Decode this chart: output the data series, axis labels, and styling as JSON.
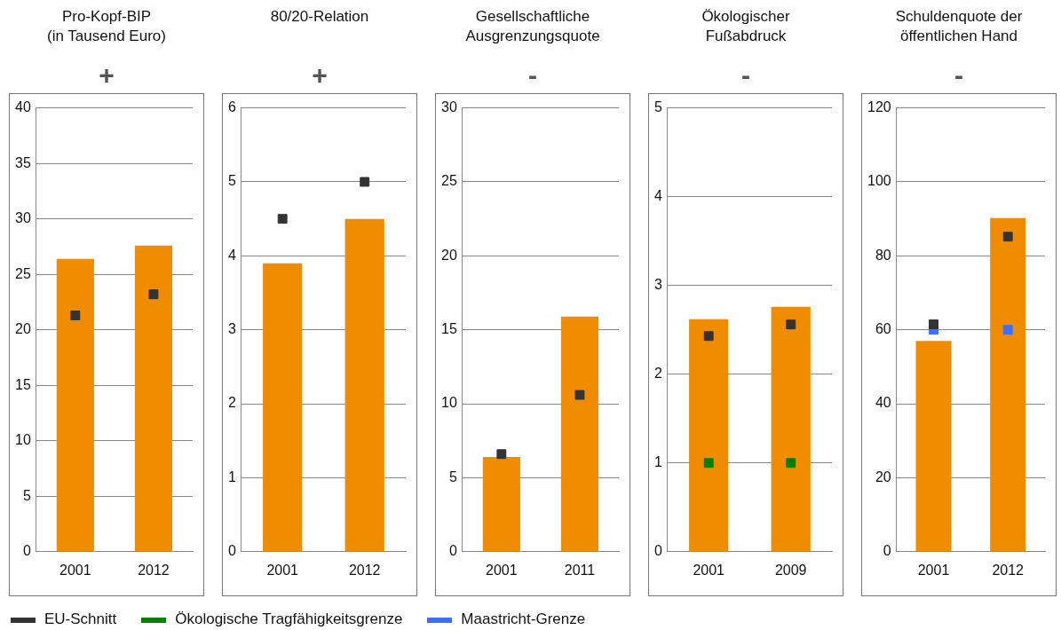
{
  "chart_data": [
    {
      "type": "bar",
      "title": "Pro-Kopf-BIP\n(in Tausend Euro)",
      "annotations": [
        "+"
      ],
      "categories": [
        "2001",
        "2012"
      ],
      "values": [
        26.4,
        27.6
      ],
      "color": "#f08c00",
      "ylim": [
        0,
        40
      ],
      "yticks": [
        0,
        5,
        10,
        15,
        20,
        25,
        30,
        35,
        40
      ],
      "grid": "y",
      "legend": "bottom",
      "marker": "square",
      "series": [
        {
          "name": "EU-Schnitt",
          "type": "scatter",
          "color": "#333333",
          "values": [
            21.3,
            23.2
          ]
        }
      ]
    },
    {
      "type": "bar",
      "title": "80/20-Relation",
      "annotations": [
        "+"
      ],
      "categories": [
        "2001",
        "2012"
      ],
      "values": [
        3.9,
        4.5
      ],
      "color": "#f08c00",
      "ylim": [
        0,
        6
      ],
      "yticks": [
        0,
        1,
        2,
        3,
        4,
        5,
        6
      ],
      "grid": "y",
      "marker": "square",
      "series": [
        {
          "type": "scatter",
          "color": "#333333",
          "values": [
            4.5,
            5.0
          ]
        }
      ]
    },
    {
      "type": "bar",
      "title": "Gesellschaftliche\nAusgrenzungsquote",
      "annotations": [
        "-"
      ],
      "categories": [
        "2001",
        "2011"
      ],
      "values": [
        6.4,
        15.9
      ],
      "color": "#f08c00",
      "ylim": [
        0,
        30
      ],
      "yticks": [
        0,
        5,
        10,
        15,
        20,
        25,
        30
      ],
      "grid": "y",
      "marker": "square",
      "series": [
        {
          "type": "scatter",
          "color": "#333333",
          "values": [
            6.6,
            10.6
          ]
        }
      ]
    },
    {
      "type": "bar",
      "title": "Ökologischer\nFußabdruck",
      "annotations": [
        "-"
      ],
      "categories": [
        "2001",
        "2009"
      ],
      "values": [
        2.62,
        2.76
      ],
      "color": "#f08c00",
      "ylim": [
        0,
        5
      ],
      "yticks": [
        0,
        1,
        2,
        3,
        4,
        5
      ],
      "grid": "y",
      "legend": "bottom",
      "marker": "square",
      "series": [
        {
          "type": "scatter",
          "color": "#333333",
          "values": [
            2.43,
            2.56
          ]
        },
        {
          "name": "Ökologische Tragfähigkeitsgrenze",
          "type": "scatter",
          "color": "#008000",
          "values": [
            1.0,
            1.0
          ]
        }
      ]
    },
    {
      "type": "bar",
      "title": "Schuldenquote der\nöffentlichen Hand",
      "annotations": [
        "-"
      ],
      "categories": [
        "2001",
        "2012"
      ],
      "values": [
        57.0,
        90.2
      ],
      "color": "#f08c00",
      "ylim": [
        0,
        120
      ],
      "yticks": [
        0,
        20,
        40,
        60,
        80,
        100,
        120
      ],
      "grid": "y",
      "legend": "bottom",
      "marker": "square",
      "series": [
        {
          "type": "scatter",
          "color": "#333333",
          "values": [
            61.5,
            85.2
          ]
        },
        {
          "name": "Maastricht-Grenze",
          "type": "scatter",
          "color": "#3f6fff",
          "values": [
            60,
            60
          ]
        }
      ]
    }
  ]
}
